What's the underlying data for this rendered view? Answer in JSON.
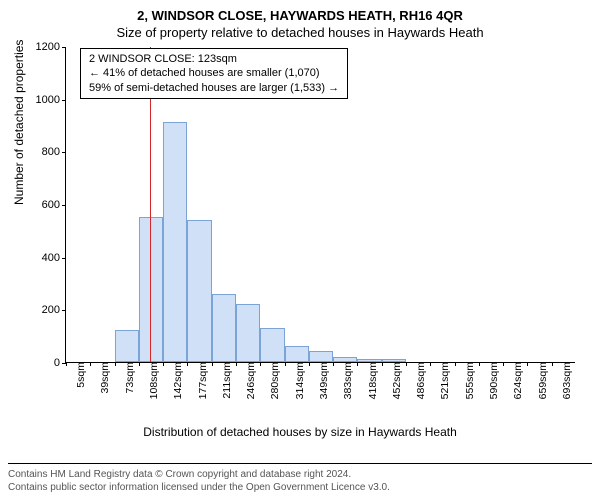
{
  "chart": {
    "type": "histogram",
    "title_main": "2, WINDSOR CLOSE, HAYWARDS HEATH, RH16 4QR",
    "title_sub": "Size of property relative to detached houses in Haywards Heath",
    "ylabel": "Number of detached properties",
    "xlabel": "Distribution of detached houses by size in Haywards Heath",
    "ylim": [
      0,
      1200
    ],
    "yticks": [
      0,
      200,
      400,
      600,
      800,
      1000,
      1200
    ],
    "xtick_labels": [
      "5sqm",
      "39sqm",
      "73sqm",
      "108sqm",
      "142sqm",
      "177sqm",
      "211sqm",
      "246sqm",
      "280sqm",
      "314sqm",
      "349sqm",
      "383sqm",
      "418sqm",
      "452sqm",
      "486sqm",
      "521sqm",
      "555sqm",
      "590sqm",
      "624sqm",
      "659sqm",
      "693sqm"
    ],
    "bar_values": [
      0,
      0,
      120,
      550,
      910,
      540,
      260,
      220,
      130,
      60,
      40,
      20,
      10,
      10,
      0,
      0,
      0,
      0,
      0,
      0,
      0
    ],
    "bar_fill": "#cfe0f7",
    "bar_border": "#7ba3d6",
    "plot_border_color": "#000000",
    "background_color": "#ffffff",
    "marker_line_color": "#d62728",
    "marker_bin_index": 3,
    "marker_fraction_in_bin": 0.45,
    "annotation": {
      "line1": "2 WINDSOR CLOSE: 123sqm",
      "line2": "← 41% of detached houses are smaller (1,070)",
      "line3": "59% of semi-detached houses are larger (1,533) →"
    },
    "footer": {
      "line1": "Contains HM Land Registry data © Crown copyright and database right 2024.",
      "line2": "Contains public sector information licensed under the Open Government Licence v3.0."
    },
    "title_fontsize": 13,
    "label_fontsize": 12,
    "tick_fontsize": 11,
    "annotation_fontsize": 11,
    "footer_fontsize": 10
  }
}
